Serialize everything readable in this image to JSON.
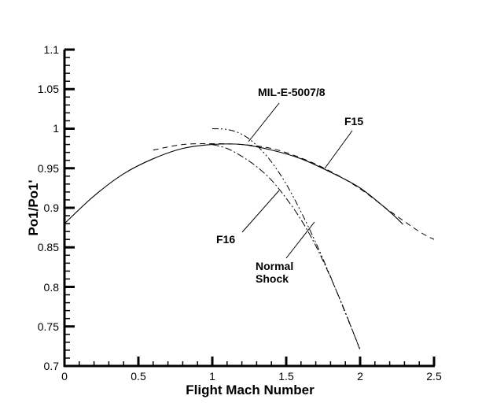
{
  "chart_data": {
    "type": "line",
    "title": "",
    "xlabel": "Flight Mach Number",
    "ylabel": "Po1/Po1'",
    "xlim": [
      0,
      2.5
    ],
    "ylim": [
      0.7,
      1.1
    ],
    "grid": false,
    "legend": "none (curves labeled by leader-line annotations)",
    "x_ticks": [
      "0",
      "0.5",
      "1",
      "1.5",
      "2",
      "2.5"
    ],
    "y_ticks": [
      "0.7",
      "0.75",
      "0.8",
      "0.85",
      "0.9",
      "0.95",
      "1",
      "1.05",
      "1.1"
    ],
    "series": [
      {
        "name": "F15",
        "style": "solid",
        "x": [
          0,
          0.2,
          0.4,
          0.6,
          0.8,
          1.0,
          1.2,
          1.4,
          1.6,
          1.8,
          2.0,
          2.2,
          2.29
        ],
        "y": [
          0.88,
          0.915,
          0.943,
          0.962,
          0.975,
          0.98,
          0.98,
          0.973,
          0.962,
          0.945,
          0.925,
          0.895,
          0.879
        ]
      },
      {
        "name": "MIL-E-5007/8",
        "style": "dashed",
        "x": [
          0.6,
          0.8,
          1.0,
          1.2,
          1.4,
          1.6,
          1.8,
          2.0,
          2.2,
          2.4,
          2.5
        ],
        "y": [
          0.973,
          0.98,
          0.981,
          0.98,
          0.975,
          0.963,
          0.946,
          0.924,
          0.896,
          0.87,
          0.86
        ]
      },
      {
        "name": "F16",
        "style": "dash-dot",
        "x": [
          1.0,
          1.1,
          1.2,
          1.3,
          1.4,
          1.5,
          1.6,
          1.7,
          1.8,
          1.9,
          2.0
        ],
        "y": [
          0.98,
          0.975,
          0.965,
          0.952,
          0.935,
          0.912,
          0.885,
          0.852,
          0.812,
          0.768,
          0.72
        ]
      },
      {
        "name": "Normal Shock",
        "style": "dash-dot-dot",
        "x": [
          1.0,
          1.1,
          1.2,
          1.3,
          1.4,
          1.5,
          1.6,
          1.7,
          1.8,
          1.9,
          2.0
        ],
        "y": [
          1.0,
          0.999,
          0.993,
          0.979,
          0.958,
          0.93,
          0.895,
          0.856,
          0.813,
          0.767,
          0.721
        ]
      }
    ],
    "annotations": [
      {
        "text": "MIL-E-5007/8",
        "target_series": "MIL-E-5007/8"
      },
      {
        "text": "F15",
        "target_series": "F15"
      },
      {
        "text": "F16",
        "target_series": "F16"
      },
      {
        "text": "Normal",
        "text2": "Shock",
        "target_series": "Normal Shock"
      }
    ]
  },
  "labels": {
    "xlabel": "Flight Mach Number",
    "ylabel": "Po1/Po1'",
    "mil": "MIL-E-5007/8",
    "f15": "F15",
    "f16": "F16",
    "normal1": "Normal",
    "normal2": "Shock"
  },
  "ticks": {
    "x": [
      "0",
      "0.5",
      "1",
      "1.5",
      "2",
      "2.5"
    ],
    "y": [
      "0.7",
      "0.75",
      "0.8",
      "0.85",
      "0.9",
      "0.95",
      "1",
      "1.05",
      "1.1"
    ]
  }
}
